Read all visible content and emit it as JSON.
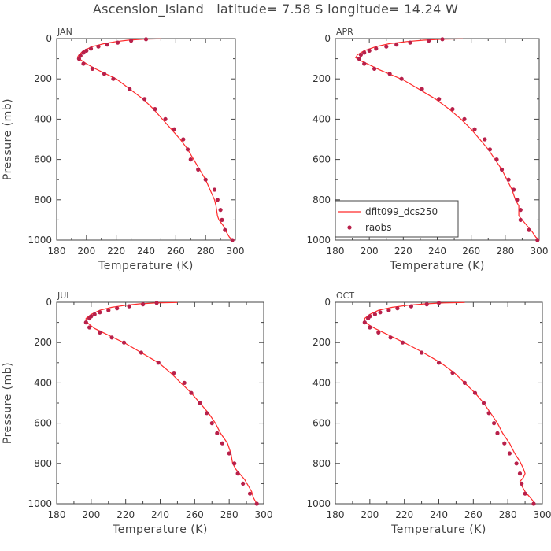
{
  "title": "Ascension_Island   latitude= 7.58 S longitude= 14.24 W",
  "colors": {
    "model": "#ff2a2a",
    "obs": "#b8204a",
    "axis": "#444444"
  },
  "legend": {
    "model_label": "dflt099_dcs250",
    "obs_label": "raobs",
    "panel": "APR"
  },
  "chart_data": [
    {
      "type": "line",
      "panel": "JAN",
      "xlabel": "Temperature (K)",
      "ylabel": "Pressure (mb)",
      "xlim": [
        180,
        300
      ],
      "ylim": [
        1000,
        0
      ],
      "y_inverted": true,
      "xticks": [
        180,
        200,
        220,
        240,
        260,
        280,
        300
      ],
      "yticks": [
        0,
        200,
        400,
        600,
        800,
        1000
      ],
      "series": [
        {
          "name": "dflt099_dcs250",
          "kind": "line",
          "points": [
            [
              250,
              1
            ],
            [
              238,
              3
            ],
            [
              228,
              8
            ],
            [
              220,
              15
            ],
            [
              212,
              25
            ],
            [
              204,
              40
            ],
            [
              198,
              60
            ],
            [
              195,
              80
            ],
            [
              194,
              92
            ],
            [
              196,
              105
            ],
            [
              200,
              125
            ],
            [
              206,
              150
            ],
            [
              213,
              175
            ],
            [
              220,
              200
            ],
            [
              229,
              250
            ],
            [
              238,
              300
            ],
            [
              245,
              350
            ],
            [
              251,
              400
            ],
            [
              257,
              450
            ],
            [
              263,
              500
            ],
            [
              268,
              550
            ],
            [
              272,
              600
            ],
            [
              276,
              650
            ],
            [
              280,
              700
            ],
            [
              283,
              750
            ],
            [
              286,
              800
            ],
            [
              287,
              830
            ],
            [
              288,
              880
            ],
            [
              289,
              900
            ],
            [
              292,
              930
            ],
            [
              294,
              960
            ],
            [
              296,
              985
            ],
            [
              298,
              1000
            ]
          ]
        },
        {
          "name": "raobs",
          "kind": "scatter",
          "points": [
            [
              240,
              3
            ],
            [
              230,
              10
            ],
            [
              221,
              20
            ],
            [
              214,
              30
            ],
            [
              208,
              40
            ],
            [
              203,
              50
            ],
            [
              200,
              60
            ],
            [
              198,
              70
            ],
            [
              196,
              85
            ],
            [
              195,
              100
            ],
            [
              198,
              125
            ],
            [
              204,
              150
            ],
            [
              212,
              175
            ],
            [
              218,
              200
            ],
            [
              229,
              250
            ],
            [
              239,
              300
            ],
            [
              246,
              350
            ],
            [
              253,
              400
            ],
            [
              259,
              450
            ],
            [
              265,
              500
            ],
            [
              268,
              550
            ],
            [
              270,
              600
            ],
            [
              275,
              650
            ],
            [
              280,
              700
            ],
            [
              286,
              750
            ],
            [
              288,
              800
            ],
            [
              290,
              850
            ],
            [
              291,
              900
            ],
            [
              293,
              950
            ],
            [
              298,
              1000
            ]
          ]
        }
      ]
    },
    {
      "type": "line",
      "panel": "APR",
      "xlabel": "Temperature (K)",
      "ylabel": "",
      "xlim": [
        180,
        300
      ],
      "ylim": [
        1000,
        0
      ],
      "y_inverted": true,
      "xticks": [
        180,
        200,
        220,
        240,
        260,
        280,
        300
      ],
      "yticks": [
        0,
        200,
        400,
        600,
        800,
        1000
      ],
      "series": [
        {
          "name": "dflt099_dcs250",
          "kind": "line",
          "points": [
            [
              255,
              1
            ],
            [
              243,
              3
            ],
            [
              232,
              8
            ],
            [
              222,
              15
            ],
            [
              212,
              25
            ],
            [
              204,
              40
            ],
            [
              197,
              60
            ],
            [
              193,
              80
            ],
            [
              192,
              95
            ],
            [
              195,
              110
            ],
            [
              200,
              130
            ],
            [
              206,
              155
            ],
            [
              213,
              180
            ],
            [
              220,
              205
            ],
            [
              229,
              250
            ],
            [
              239,
              300
            ],
            [
              247,
              350
            ],
            [
              254,
              400
            ],
            [
              260,
              450
            ],
            [
              265,
              500
            ],
            [
              270,
              550
            ],
            [
              274,
              600
            ],
            [
              278,
              650
            ],
            [
              281,
              700
            ],
            [
              284,
              750
            ],
            [
              286,
              800
            ],
            [
              288,
              830
            ],
            [
              288,
              880
            ],
            [
              290,
              900
            ],
            [
              293,
              930
            ],
            [
              296,
              960
            ],
            [
              298,
              985
            ],
            [
              300,
              1000
            ]
          ]
        },
        {
          "name": "raobs",
          "kind": "scatter",
          "points": [
            [
              243,
              3
            ],
            [
              235,
              10
            ],
            [
              224,
              20
            ],
            [
              216,
              30
            ],
            [
              210,
              40
            ],
            [
              204,
              50
            ],
            [
              200,
              60
            ],
            [
              197,
              70
            ],
            [
              195,
              80
            ],
            [
              194,
              100
            ],
            [
              197,
              125
            ],
            [
              203,
              150
            ],
            [
              212,
              175
            ],
            [
              219,
              200
            ],
            [
              231,
              250
            ],
            [
              241,
              300
            ],
            [
              249,
              350
            ],
            [
              256,
              400
            ],
            [
              262,
              450
            ],
            [
              268,
              500
            ],
            [
              271,
              550
            ],
            [
              275,
              600
            ],
            [
              278,
              650
            ],
            [
              282,
              700
            ],
            [
              285,
              750
            ],
            [
              287,
              800
            ],
            [
              289,
              850
            ],
            [
              289,
              900
            ],
            [
              294,
              950
            ],
            [
              299,
              1000
            ]
          ]
        }
      ]
    },
    {
      "type": "line",
      "panel": "JUL",
      "xlabel": "Temperature (K)",
      "ylabel": "Pressure (mb)",
      "xlim": [
        180,
        300
      ],
      "ylim": [
        1000,
        0
      ],
      "y_inverted": true,
      "xticks": [
        180,
        200,
        220,
        240,
        260,
        280,
        300
      ],
      "yticks": [
        0,
        200,
        400,
        600,
        800,
        1000
      ],
      "series": [
        {
          "name": "dflt099_dcs250",
          "kind": "line",
          "points": [
            [
              250,
              1
            ],
            [
              238,
              3
            ],
            [
              228,
              8
            ],
            [
              220,
              15
            ],
            [
              212,
              25
            ],
            [
              205,
              40
            ],
            [
              200,
              60
            ],
            [
              197,
              80
            ],
            [
              197,
              95
            ],
            [
              199,
              110
            ],
            [
              202,
              130
            ],
            [
              208,
              155
            ],
            [
              214,
              180
            ],
            [
              220,
              205
            ],
            [
              229,
              250
            ],
            [
              239,
              300
            ],
            [
              246,
              350
            ],
            [
              252,
              400
            ],
            [
              258,
              450
            ],
            [
              263,
              500
            ],
            [
              268,
              550
            ],
            [
              272,
              600
            ],
            [
              275,
              650
            ],
            [
              279,
              700
            ],
            [
              281,
              750
            ],
            [
              282,
              800
            ],
            [
              284,
              830
            ],
            [
              286,
              850
            ],
            [
              289,
              880
            ],
            [
              291,
              910
            ],
            [
              293,
              940
            ],
            [
              294,
              970
            ],
            [
              296,
              1000
            ]
          ]
        },
        {
          "name": "raobs",
          "kind": "scatter",
          "points": [
            [
              238,
              3
            ],
            [
              230,
              10
            ],
            [
              222,
              20
            ],
            [
              215,
              30
            ],
            [
              210,
              40
            ],
            [
              205,
              50
            ],
            [
              202,
              60
            ],
            [
              200,
              70
            ],
            [
              199,
              80
            ],
            [
              197,
              100
            ],
            [
              199,
              125
            ],
            [
              205,
              150
            ],
            [
              212,
              175
            ],
            [
              219,
              200
            ],
            [
              229,
              250
            ],
            [
              239,
              300
            ],
            [
              248,
              350
            ],
            [
              254,
              400
            ],
            [
              258,
              450
            ],
            [
              263,
              500
            ],
            [
              267,
              550
            ],
            [
              270,
              600
            ],
            [
              273,
              650
            ],
            [
              276,
              700
            ],
            [
              280,
              750
            ],
            [
              283,
              800
            ],
            [
              285,
              850
            ],
            [
              288,
              900
            ],
            [
              292,
              950
            ],
            [
              296,
              1000
            ]
          ]
        }
      ]
    },
    {
      "type": "line",
      "panel": "OCT",
      "xlabel": "Temperature (K)",
      "ylabel": "",
      "xlim": [
        180,
        300
      ],
      "ylim": [
        1000,
        0
      ],
      "y_inverted": true,
      "xticks": [
        180,
        200,
        220,
        240,
        260,
        280,
        300
      ],
      "yticks": [
        0,
        200,
        400,
        600,
        800,
        1000
      ],
      "series": [
        {
          "name": "dflt099_dcs250",
          "kind": "line",
          "points": [
            [
              255,
              1
            ],
            [
              243,
              3
            ],
            [
              232,
              8
            ],
            [
              222,
              15
            ],
            [
              213,
              25
            ],
            [
              205,
              40
            ],
            [
              200,
              60
            ],
            [
              197,
              80
            ],
            [
              197,
              95
            ],
            [
              199,
              110
            ],
            [
              203,
              130
            ],
            [
              209,
              155
            ],
            [
              215,
              180
            ],
            [
              221,
              205
            ],
            [
              231,
              250
            ],
            [
              241,
              300
            ],
            [
              249,
              350
            ],
            [
              255,
              400
            ],
            [
              261,
              450
            ],
            [
              266,
              500
            ],
            [
              270,
              550
            ],
            [
              274,
              600
            ],
            [
              277,
              650
            ],
            [
              281,
              700
            ],
            [
              284,
              750
            ],
            [
              287,
              790
            ],
            [
              289,
              825
            ],
            [
              290,
              850
            ],
            [
              289,
              870
            ],
            [
              287,
              890
            ],
            [
              288,
              910
            ],
            [
              290,
              940
            ],
            [
              293,
              970
            ],
            [
              296,
              1000
            ]
          ]
        },
        {
          "name": "raobs",
          "kind": "scatter",
          "points": [
            [
              240,
              3
            ],
            [
              233,
              10
            ],
            [
              224,
              20
            ],
            [
              216,
              30
            ],
            [
              211,
              40
            ],
            [
              206,
              50
            ],
            [
              203,
              60
            ],
            [
              200,
              70
            ],
            [
              199,
              80
            ],
            [
              197,
              100
            ],
            [
              200,
              125
            ],
            [
              205,
              150
            ],
            [
              212,
              175
            ],
            [
              219,
              200
            ],
            [
              230,
              250
            ],
            [
              240,
              300
            ],
            [
              248,
              350
            ],
            [
              255,
              400
            ],
            [
              261,
              450
            ],
            [
              266,
              500
            ],
            [
              269,
              550
            ],
            [
              272,
              600
            ],
            [
              274,
              650
            ],
            [
              278,
              700
            ],
            [
              281,
              750
            ],
            [
              285,
              800
            ],
            [
              287,
              850
            ],
            [
              288,
              900
            ],
            [
              290,
              950
            ],
            [
              295,
              1000
            ]
          ]
        }
      ]
    }
  ]
}
